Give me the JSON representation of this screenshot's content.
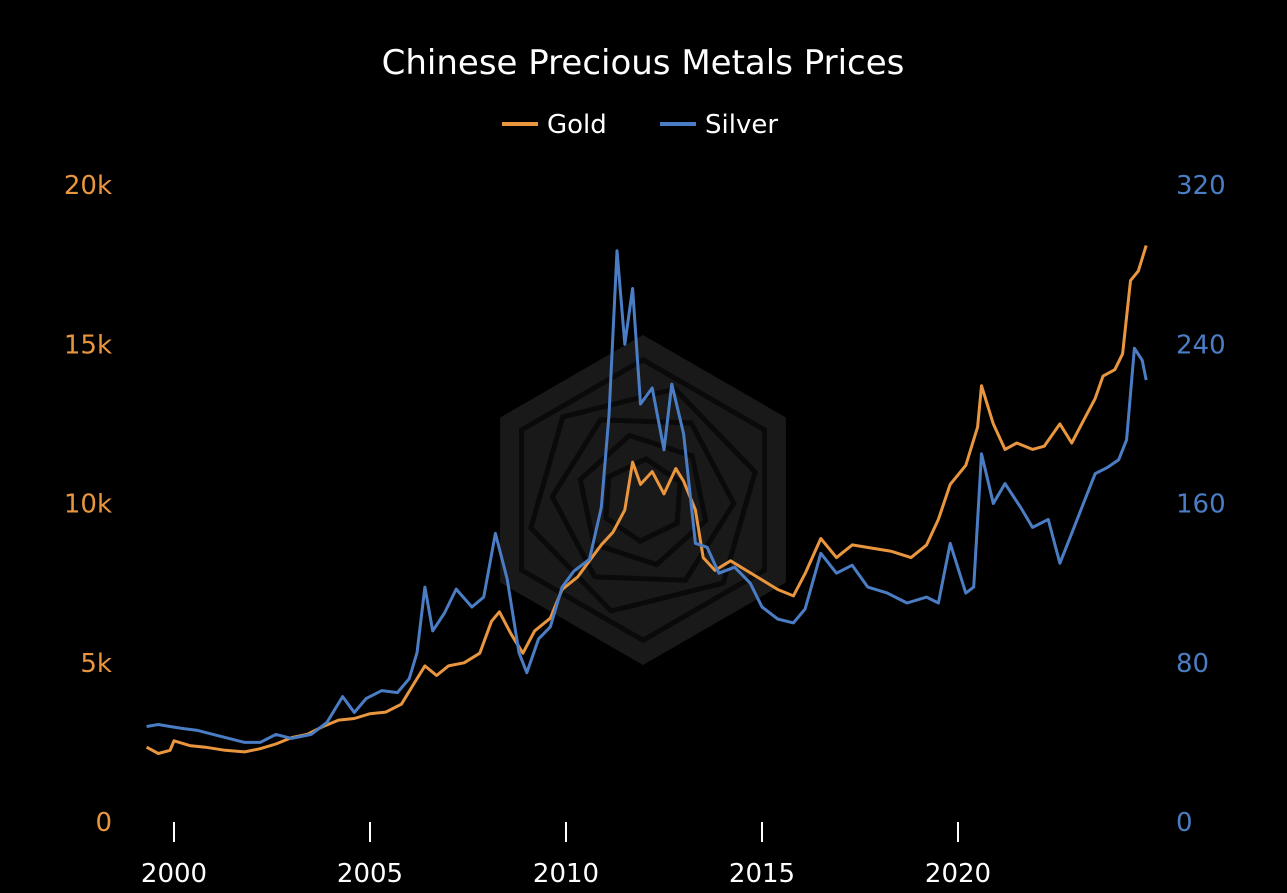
{
  "colors": {
    "background": "#000000",
    "gold": "#E9963F",
    "silver": "#4A7DC4",
    "text": "#FFFFFF",
    "watermark": "#2a2a2a"
  },
  "chart_data": {
    "type": "line",
    "title": "Chinese Precious Metals Prices",
    "legend": {
      "placement": "top-center",
      "entries": [
        "Gold",
        "Silver"
      ]
    },
    "grid": false,
    "x_axis": {
      "range": [
        1999.0,
        2024.8
      ],
      "ticks": [
        "2000",
        "2005",
        "2010",
        "2015",
        "2020"
      ]
    },
    "y_left": {
      "range": [
        0,
        20000
      ],
      "ticks": [
        "0",
        "5k",
        "10k",
        "15k",
        "20k"
      ],
      "series": "Gold"
    },
    "y_right": {
      "range": [
        0,
        320
      ],
      "ticks": [
        "0",
        "80",
        "160",
        "240",
        "320"
      ],
      "series": "Silver"
    },
    "series": [
      {
        "name": "Gold",
        "axis": "left",
        "color": "#E9963F",
        "points": [
          [
            1999.3,
            2350
          ],
          [
            1999.6,
            2150
          ],
          [
            1999.9,
            2250
          ],
          [
            2000.0,
            2550
          ],
          [
            2000.4,
            2400
          ],
          [
            2000.8,
            2350
          ],
          [
            2001.3,
            2250
          ],
          [
            2001.8,
            2200
          ],
          [
            2002.2,
            2300
          ],
          [
            2002.6,
            2450
          ],
          [
            2003.0,
            2650
          ],
          [
            2003.4,
            2750
          ],
          [
            2003.8,
            3000
          ],
          [
            2004.2,
            3200
          ],
          [
            2004.6,
            3250
          ],
          [
            2005.0,
            3400
          ],
          [
            2005.4,
            3450
          ],
          [
            2005.8,
            3700
          ],
          [
            2006.1,
            4300
          ],
          [
            2006.4,
            4900
          ],
          [
            2006.7,
            4600
          ],
          [
            2007.0,
            4900
          ],
          [
            2007.4,
            5000
          ],
          [
            2007.8,
            5300
          ],
          [
            2008.1,
            6300
          ],
          [
            2008.3,
            6600
          ],
          [
            2008.6,
            5900
          ],
          [
            2008.9,
            5300
          ],
          [
            2009.2,
            6000
          ],
          [
            2009.6,
            6400
          ],
          [
            2009.9,
            7300
          ],
          [
            2010.3,
            7700
          ],
          [
            2010.6,
            8200
          ],
          [
            2010.9,
            8700
          ],
          [
            2011.2,
            9100
          ],
          [
            2011.5,
            9800
          ],
          [
            2011.7,
            11300
          ],
          [
            2011.9,
            10600
          ],
          [
            2012.2,
            11000
          ],
          [
            2012.5,
            10300
          ],
          [
            2012.8,
            11100
          ],
          [
            2013.0,
            10700
          ],
          [
            2013.3,
            9800
          ],
          [
            2013.5,
            8300
          ],
          [
            2013.8,
            7900
          ],
          [
            2014.2,
            8200
          ],
          [
            2014.6,
            7900
          ],
          [
            2015.0,
            7600
          ],
          [
            2015.4,
            7300
          ],
          [
            2015.8,
            7100
          ],
          [
            2016.1,
            7800
          ],
          [
            2016.5,
            8900
          ],
          [
            2016.9,
            8300
          ],
          [
            2017.3,
            8700
          ],
          [
            2017.8,
            8600
          ],
          [
            2018.3,
            8500
          ],
          [
            2018.8,
            8300
          ],
          [
            2019.2,
            8700
          ],
          [
            2019.5,
            9500
          ],
          [
            2019.8,
            10600
          ],
          [
            2020.2,
            11200
          ],
          [
            2020.5,
            12400
          ],
          [
            2020.6,
            13700
          ],
          [
            2020.9,
            12500
          ],
          [
            2021.2,
            11700
          ],
          [
            2021.5,
            11900
          ],
          [
            2021.9,
            11700
          ],
          [
            2022.2,
            11800
          ],
          [
            2022.6,
            12500
          ],
          [
            2022.9,
            11900
          ],
          [
            2023.2,
            12600
          ],
          [
            2023.5,
            13300
          ],
          [
            2023.7,
            14000
          ],
          [
            2024.0,
            14200
          ],
          [
            2024.2,
            14700
          ],
          [
            2024.4,
            17000
          ],
          [
            2024.6,
            17300
          ],
          [
            2024.8,
            18100
          ]
        ]
      },
      {
        "name": "Silver",
        "axis": "right",
        "color": "#4A7DC4",
        "points": [
          [
            1999.3,
            48
          ],
          [
            1999.6,
            49
          ],
          [
            1999.9,
            48
          ],
          [
            2000.2,
            47
          ],
          [
            2000.6,
            46
          ],
          [
            2001.0,
            44
          ],
          [
            2001.4,
            42
          ],
          [
            2001.8,
            40
          ],
          [
            2002.2,
            40
          ],
          [
            2002.6,
            44
          ],
          [
            2003.0,
            42
          ],
          [
            2003.5,
            44
          ],
          [
            2003.9,
            50
          ],
          [
            2004.3,
            63
          ],
          [
            2004.6,
            55
          ],
          [
            2004.9,
            62
          ],
          [
            2005.3,
            66
          ],
          [
            2005.7,
            65
          ],
          [
            2006.0,
            72
          ],
          [
            2006.2,
            85
          ],
          [
            2006.4,
            118
          ],
          [
            2006.6,
            96
          ],
          [
            2006.9,
            105
          ],
          [
            2007.2,
            117
          ],
          [
            2007.6,
            108
          ],
          [
            2007.9,
            113
          ],
          [
            2008.2,
            145
          ],
          [
            2008.5,
            122
          ],
          [
            2008.8,
            85
          ],
          [
            2009.0,
            75
          ],
          [
            2009.3,
            92
          ],
          [
            2009.6,
            98
          ],
          [
            2009.9,
            118
          ],
          [
            2010.2,
            126
          ],
          [
            2010.6,
            132
          ],
          [
            2010.9,
            158
          ],
          [
            2011.1,
            205
          ],
          [
            2011.3,
            287
          ],
          [
            2011.5,
            240
          ],
          [
            2011.7,
            268
          ],
          [
            2011.9,
            210
          ],
          [
            2012.2,
            218
          ],
          [
            2012.5,
            187
          ],
          [
            2012.7,
            220
          ],
          [
            2013.0,
            195
          ],
          [
            2013.3,
            140
          ],
          [
            2013.6,
            138
          ],
          [
            2013.9,
            125
          ],
          [
            2014.3,
            128
          ],
          [
            2014.7,
            120
          ],
          [
            2015.0,
            108
          ],
          [
            2015.4,
            102
          ],
          [
            2015.8,
            100
          ],
          [
            2016.1,
            107
          ],
          [
            2016.5,
            135
          ],
          [
            2016.9,
            125
          ],
          [
            2017.3,
            129
          ],
          [
            2017.7,
            118
          ],
          [
            2018.2,
            115
          ],
          [
            2018.7,
            110
          ],
          [
            2019.2,
            113
          ],
          [
            2019.5,
            110
          ],
          [
            2019.8,
            140
          ],
          [
            2020.2,
            115
          ],
          [
            2020.4,
            118
          ],
          [
            2020.6,
            185
          ],
          [
            2020.9,
            160
          ],
          [
            2021.2,
            170
          ],
          [
            2021.6,
            158
          ],
          [
            2021.9,
            148
          ],
          [
            2022.3,
            152
          ],
          [
            2022.6,
            130
          ],
          [
            2022.9,
            145
          ],
          [
            2023.2,
            160
          ],
          [
            2023.5,
            175
          ],
          [
            2023.8,
            178
          ],
          [
            2024.1,
            182
          ],
          [
            2024.3,
            192
          ],
          [
            2024.5,
            238
          ],
          [
            2024.7,
            232
          ],
          [
            2024.8,
            222
          ]
        ]
      }
    ]
  }
}
